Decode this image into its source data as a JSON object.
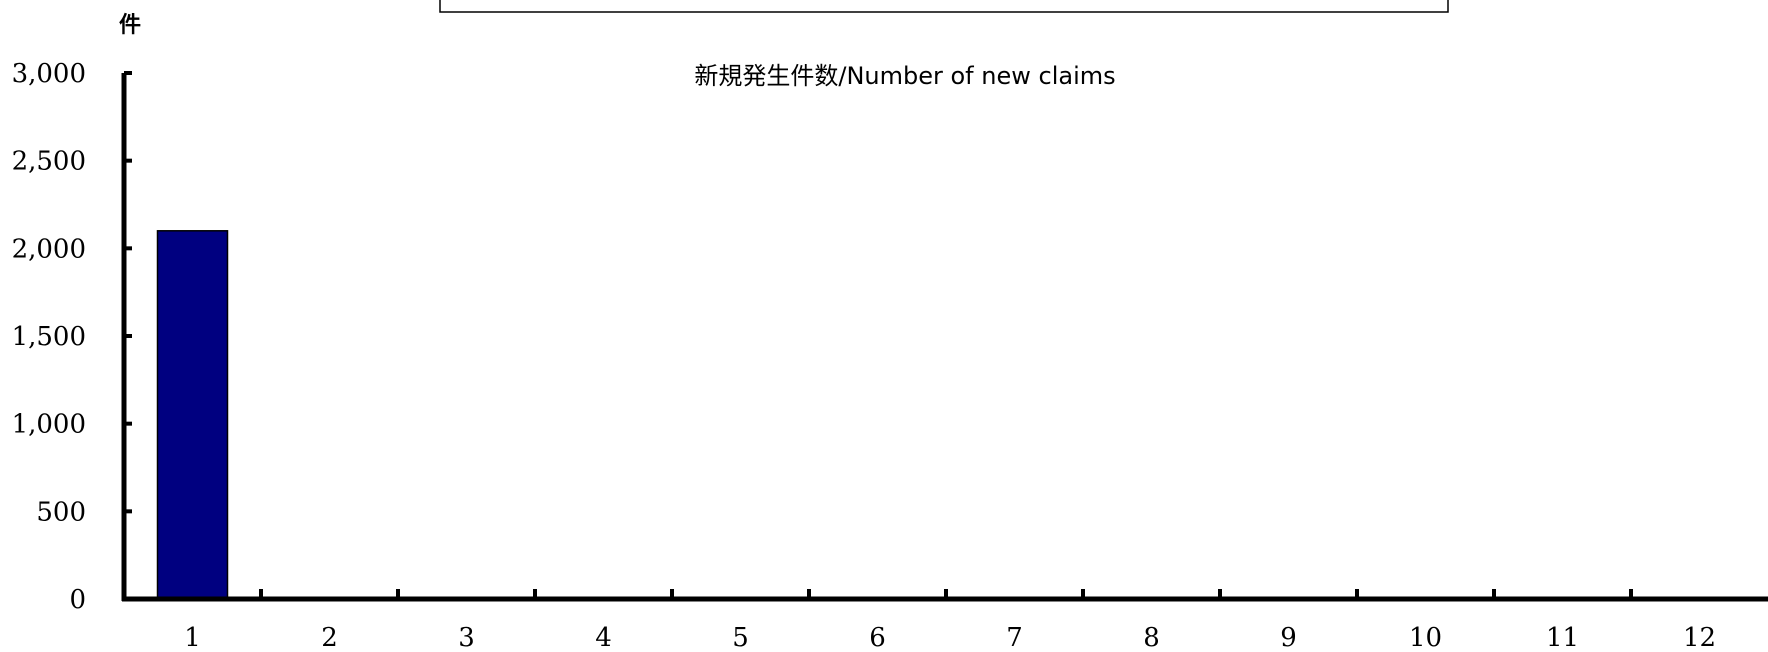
{
  "chart_data": {
    "type": "bar",
    "title": "新規発生件数/Number of new claims",
    "ylabel": "件",
    "xlabel": "",
    "categories": [
      "1",
      "2",
      "3",
      "4",
      "5",
      "6",
      "7",
      "8",
      "9",
      "10",
      "11",
      "12"
    ],
    "values": [
      2100,
      0,
      0,
      0,
      0,
      0,
      0,
      0,
      0,
      0,
      0,
      0
    ],
    "ylim": [
      0,
      3000
    ],
    "yticks": [
      0,
      500,
      1000,
      1500,
      2000,
      2500,
      3000
    ],
    "ytick_labels": [
      "0",
      "500",
      "1,000",
      "1,500",
      "2,000",
      "2,500",
      "3,000"
    ],
    "grid": false,
    "legend": "none",
    "colors": {
      "bar": "#000080",
      "axis": "#000000"
    }
  }
}
